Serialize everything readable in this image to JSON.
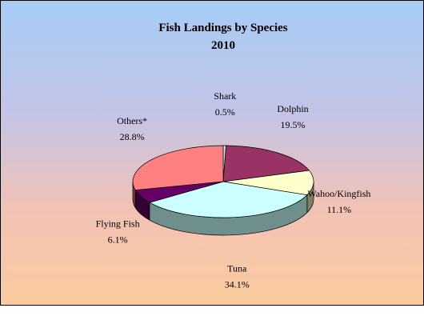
{
  "chart_data": {
    "type": "pie",
    "title": "Fish Landings by Species",
    "subtitle": "2010",
    "slices": [
      {
        "label": "Shark",
        "value": 0.5,
        "display": "0.5%",
        "color": "#cfe1f5",
        "side": "#5d6f80"
      },
      {
        "label": "Dolphin",
        "value": 19.5,
        "display": "19.5%",
        "color": "#993366",
        "side": "#4d1a33"
      },
      {
        "label": "Wahoo/Kingfish",
        "value": 11.1,
        "display": "11.1%",
        "color": "#ffffcc",
        "side": "#808066"
      },
      {
        "label": "Tuna",
        "value": 34.1,
        "display": "34.1%",
        "color": "#ccffff",
        "side": "#6e8f8c"
      },
      {
        "label": "Flying Fish",
        "value": 6.1,
        "display": "6.1%",
        "color": "#660066",
        "side": "#330033"
      },
      {
        "label": "Others*",
        "value": 28.8,
        "display": "28.8%",
        "color": "#ff8080",
        "side": "#804040"
      }
    ],
    "legend": "none",
    "style": "3d-exploded-labels"
  }
}
